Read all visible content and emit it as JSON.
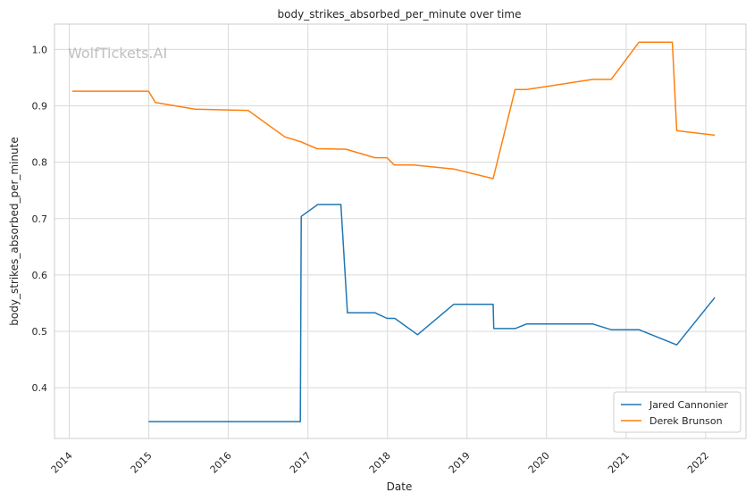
{
  "chart_data": {
    "type": "line",
    "title": "body_strikes_absorbed_per_minute over time",
    "xlabel": "Date",
    "ylabel": "body_strikes_absorbed_per_minute",
    "watermark": "WolfTickets.AI",
    "grid": true,
    "legend_position": "lower-right",
    "xlim": [
      "2013-10-25",
      "2022-07-05"
    ],
    "ylim": [
      0.31,
      1.045
    ],
    "x_ticks": [
      "2014",
      "2015",
      "2016",
      "2017",
      "2018",
      "2019",
      "2020",
      "2021",
      "2022"
    ],
    "y_ticks": [
      0.4,
      0.5,
      0.6,
      0.7,
      0.8,
      0.9,
      1.0
    ],
    "y_tick_labels": [
      "0.4",
      "0.5",
      "0.6",
      "0.7",
      "0.8",
      "0.9",
      "1.0"
    ],
    "series": [
      {
        "name": "Jared Cannonier",
        "color": "#1f77b4",
        "points": [
          {
            "x": "2014-12-31",
            "y": 0.34
          },
          {
            "x": "2016-11-27",
            "y": 0.34
          },
          {
            "x": "2016-12-01",
            "y": 0.704
          },
          {
            "x": "2017-02-15",
            "y": 0.725
          },
          {
            "x": "2017-06-01",
            "y": 0.725
          },
          {
            "x": "2017-07-01",
            "y": 0.533
          },
          {
            "x": "2017-11-04",
            "y": 0.533
          },
          {
            "x": "2017-12-30",
            "y": 0.523
          },
          {
            "x": "2018-02-04",
            "y": 0.523
          },
          {
            "x": "2018-05-19",
            "y": 0.494
          },
          {
            "x": "2018-11-01",
            "y": 0.548
          },
          {
            "x": "2019-05-01",
            "y": 0.548
          },
          {
            "x": "2019-05-04",
            "y": 0.505
          },
          {
            "x": "2019-08-10",
            "y": 0.505
          },
          {
            "x": "2019-10-01",
            "y": 0.513
          },
          {
            "x": "2020-08-01",
            "y": 0.513
          },
          {
            "x": "2020-10-24",
            "y": 0.503
          },
          {
            "x": "2021-03-01",
            "y": 0.503
          },
          {
            "x": "2021-08-21",
            "y": 0.476
          },
          {
            "x": "2022-02-12",
            "y": 0.56
          }
        ]
      },
      {
        "name": "Derek Brunson",
        "color": "#ff7f0e",
        "points": [
          {
            "x": "2014-01-15",
            "y": 0.926
          },
          {
            "x": "2014-12-31",
            "y": 0.926
          },
          {
            "x": "2015-01-31",
            "y": 0.906
          },
          {
            "x": "2015-08-01",
            "y": 0.894
          },
          {
            "x": "2016-04-01",
            "y": 0.892
          },
          {
            "x": "2016-09-17",
            "y": 0.845
          },
          {
            "x": "2016-12-01",
            "y": 0.836
          },
          {
            "x": "2017-02-11",
            "y": 0.824
          },
          {
            "x": "2017-06-25",
            "y": 0.823
          },
          {
            "x": "2017-11-04",
            "y": 0.808
          },
          {
            "x": "2017-12-30",
            "y": 0.808
          },
          {
            "x": "2018-02-01",
            "y": 0.795
          },
          {
            "x": "2018-05-01",
            "y": 0.795
          },
          {
            "x": "2018-11-01",
            "y": 0.788
          },
          {
            "x": "2019-05-01",
            "y": 0.771
          },
          {
            "x": "2019-08-10",
            "y": 0.929
          },
          {
            "x": "2019-10-01",
            "y": 0.929
          },
          {
            "x": "2020-08-01",
            "y": 0.947
          },
          {
            "x": "2020-10-24",
            "y": 0.947
          },
          {
            "x": "2021-03-01",
            "y": 1.013
          },
          {
            "x": "2021-08-01",
            "y": 1.013
          },
          {
            "x": "2021-08-21",
            "y": 0.856
          },
          {
            "x": "2022-02-12",
            "y": 0.848
          }
        ]
      }
    ]
  }
}
